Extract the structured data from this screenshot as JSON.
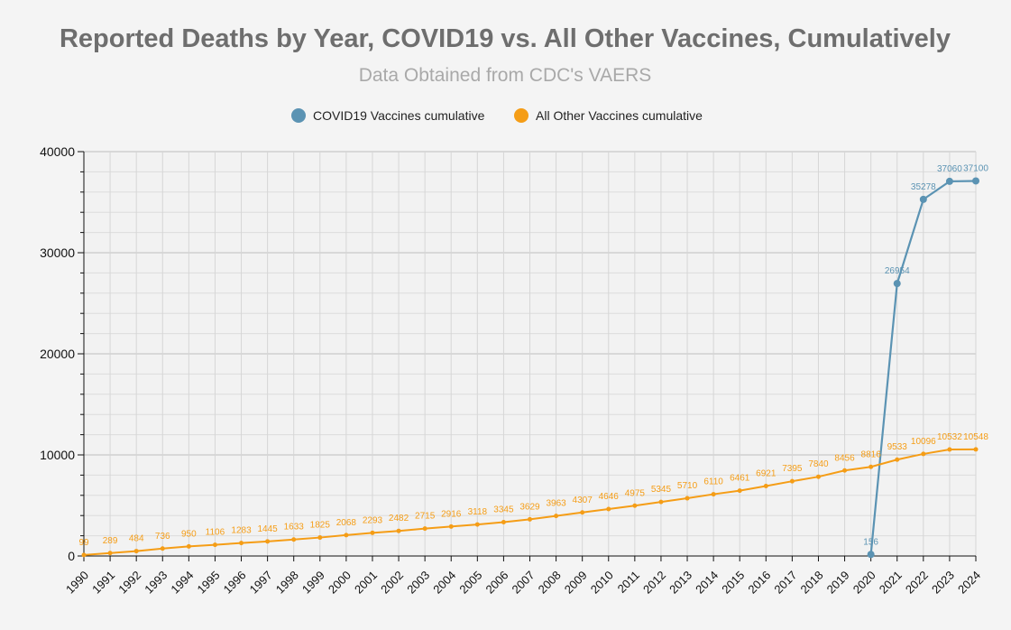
{
  "chart_data": {
    "type": "line",
    "title": "Reported Deaths by Year, COVID19 vs. All Other Vaccines, Cumulatively",
    "subtitle": "Data Obtained from CDC's VAERS",
    "xlabel": "",
    "ylabel": "",
    "ylim": [
      0,
      40000
    ],
    "yticks": [
      0,
      10000,
      20000,
      30000,
      40000
    ],
    "categories": [
      "1990",
      "1991",
      "1992",
      "1993",
      "1994",
      "1995",
      "1996",
      "1997",
      "1998",
      "1999",
      "2000",
      "2001",
      "2002",
      "2003",
      "2004",
      "2005",
      "2006",
      "2007",
      "2008",
      "2009",
      "2010",
      "2011",
      "2012",
      "2013",
      "2014",
      "2015",
      "2016",
      "2017",
      "2018",
      "2019",
      "2020",
      "2021",
      "2022",
      "2023",
      "2024"
    ],
    "legend_position": "top-center",
    "grid": true,
    "series": [
      {
        "name": "COVID19 Vaccines cumulative",
        "color": "#5b93b3",
        "values": [
          null,
          null,
          null,
          null,
          null,
          null,
          null,
          null,
          null,
          null,
          null,
          null,
          null,
          null,
          null,
          null,
          null,
          null,
          null,
          null,
          null,
          null,
          null,
          null,
          null,
          null,
          null,
          null,
          null,
          null,
          156,
          26954,
          35278,
          37060,
          37100
        ]
      },
      {
        "name": "All Other Vaccines cumulative",
        "color": "#f59d16",
        "values": [
          99,
          289,
          484,
          736,
          950,
          1106,
          1283,
          1445,
          1633,
          1825,
          2068,
          2293,
          2482,
          2715,
          2916,
          3118,
          3345,
          3629,
          3963,
          4307,
          4646,
          4975,
          5345,
          5710,
          6110,
          6461,
          6921,
          7395,
          7840,
          8456,
          8816,
          9533,
          10096,
          10532,
          10548
        ]
      }
    ]
  }
}
